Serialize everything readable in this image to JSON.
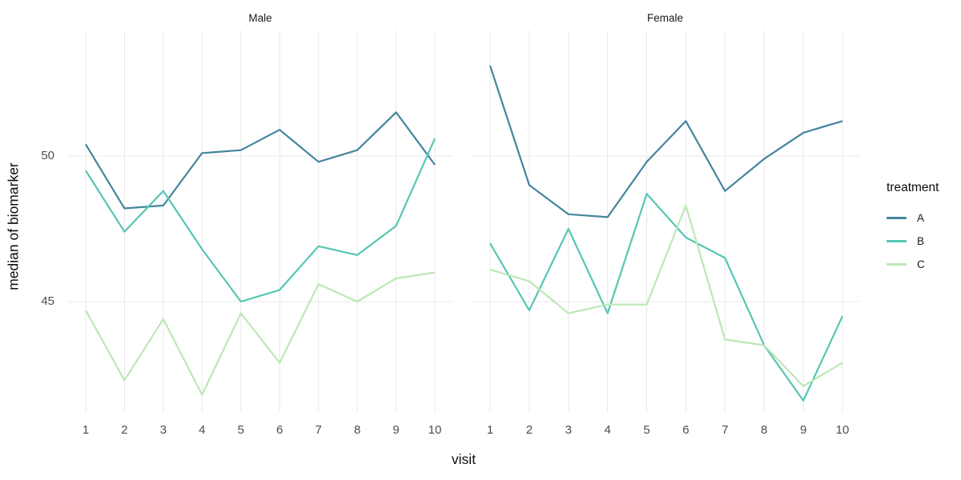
{
  "figure": {
    "y_axis_title": "median of biomarker",
    "x_axis_title": "visit"
  },
  "legend": {
    "title": "treatment",
    "items": [
      {
        "label": "A",
        "color": "#44859D"
      },
      {
        "label": "B",
        "color": "#55C6B2"
      },
      {
        "label": "C",
        "color": "#BDE7B6"
      }
    ]
  },
  "chart_data": {
    "type": "line",
    "x": [
      1,
      2,
      3,
      4,
      5,
      6,
      7,
      8,
      9,
      10
    ],
    "xlabel": "visit",
    "ylabel": "median of biomarker",
    "y_ticks": [
      50,
      45
    ],
    "ylim": [
      41.2,
      54.3
    ],
    "grid": "major",
    "legend_position": "right",
    "legend_title": "treatment",
    "facets": [
      {
        "label": "Male",
        "series": [
          {
            "name": "A",
            "color": "#44859D",
            "values": [
              50.4,
              48.2,
              48.3,
              50.1,
              50.2,
              50.9,
              49.8,
              50.2,
              51.5,
              49.7
            ]
          },
          {
            "name": "B",
            "color": "#55C6B2",
            "values": [
              49.5,
              47.4,
              48.8,
              46.8,
              45.0,
              45.4,
              46.9,
              46.6,
              47.6,
              50.6
            ]
          },
          {
            "name": "C",
            "color": "#BDE7B6",
            "values": [
              44.7,
              42.3,
              44.4,
              41.8,
              44.6,
              42.9,
              45.6,
              45.0,
              45.8,
              46.0
            ]
          }
        ]
      },
      {
        "label": "Female",
        "series": [
          {
            "name": "A",
            "color": "#44859D",
            "values": [
              53.1,
              49.0,
              48.0,
              47.9,
              49.8,
              51.2,
              48.8,
              49.9,
              50.8,
              51.2
            ]
          },
          {
            "name": "B",
            "color": "#55C6B2",
            "values": [
              47.0,
              44.7,
              47.5,
              44.6,
              48.7,
              47.2,
              46.5,
              43.5,
              41.6,
              44.5
            ]
          },
          {
            "name": "C",
            "color": "#BDE7B6",
            "values": [
              46.1,
              45.7,
              44.6,
              44.9,
              44.9,
              48.3,
              43.7,
              43.5,
              42.1,
              42.9
            ]
          }
        ]
      }
    ],
    "style": {
      "grid_color": "#E8E8E8",
      "tick_text_color": "#4d4d4d",
      "strip_text_color": "#1a1a1a"
    }
  }
}
